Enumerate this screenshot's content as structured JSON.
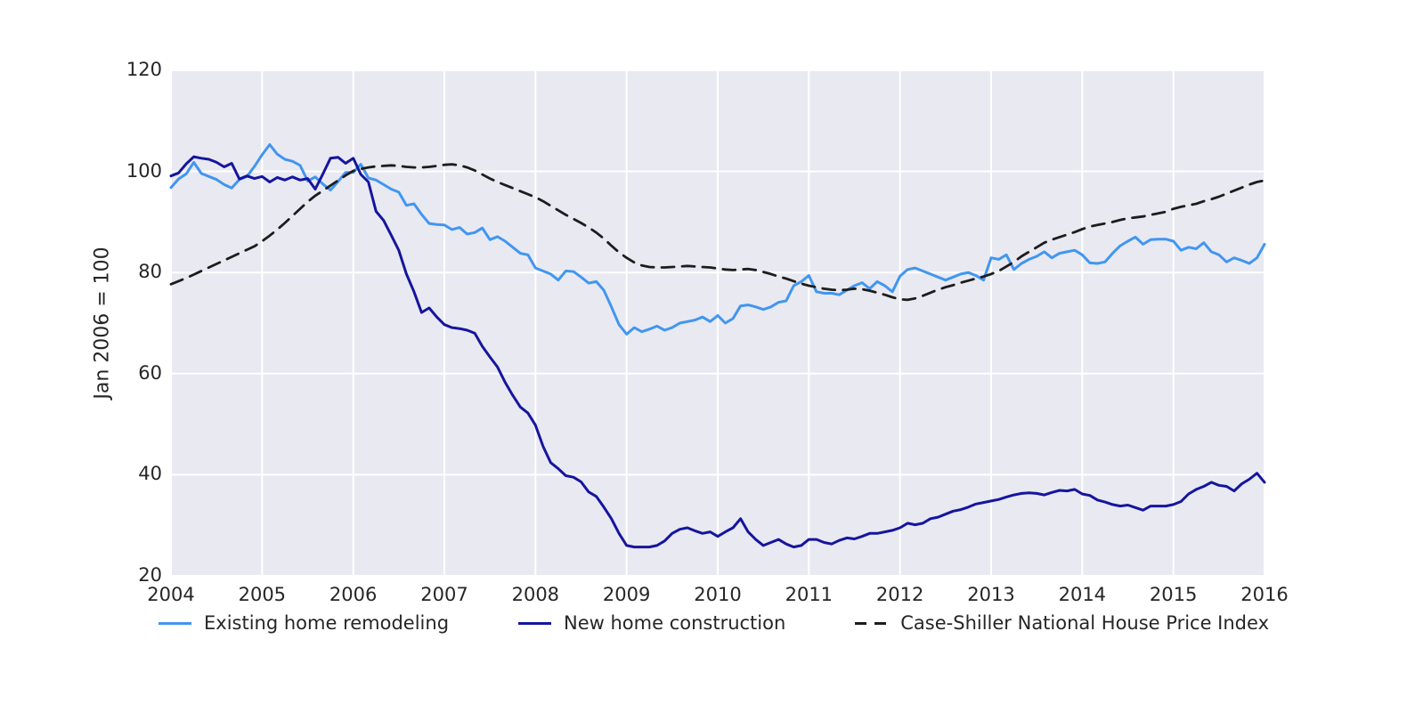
{
  "chart_data": {
    "type": "line",
    "title": "",
    "xlabel": "",
    "ylabel": "Jan 2006 = 100",
    "xlim": [
      2004,
      2016
    ],
    "ylim": [
      20,
      120
    ],
    "x_ticks": [
      2004,
      2005,
      2006,
      2007,
      2008,
      2009,
      2010,
      2011,
      2012,
      2013,
      2014,
      2015,
      2016
    ],
    "y_ticks": [
      20,
      40,
      60,
      80,
      100,
      120
    ],
    "grid": true,
    "legend_position": "bottom",
    "x_start_year": 2004,
    "x_step_months": 1,
    "plot_bg": "#e9e9f2",
    "grid_color": "#ffffff",
    "text_color": "#262626",
    "series": [
      {
        "name": "Existing home remodeling",
        "color": "#4196f0",
        "style": "solid",
        "values": [
          96.8,
          98.5,
          99.5,
          101.8,
          99.6,
          99.0,
          98.4,
          97.4,
          96.7,
          98.4,
          99.0,
          101.0,
          103.3,
          105.3,
          103.4,
          102.4,
          102.0,
          101.2,
          98.1,
          98.9,
          97.5,
          96.3,
          98.0,
          99.8,
          99.8,
          101.4,
          98.7,
          98.3,
          97.4,
          96.5,
          95.9,
          93.3,
          93.6,
          91.5,
          89.7,
          89.5,
          89.4,
          88.5,
          88.9,
          87.6,
          87.9,
          88.8,
          86.5,
          87.1,
          86.2,
          85.0,
          83.8,
          83.5,
          80.9,
          80.3,
          79.7,
          78.5,
          80.3,
          80.2,
          79.1,
          77.9,
          78.2,
          76.5,
          73.2,
          69.7,
          67.8,
          69.1,
          68.3,
          68.8,
          69.4,
          68.6,
          69.1,
          70.0,
          70.3,
          70.6,
          71.2,
          70.3,
          71.5,
          70.0,
          70.9,
          73.4,
          73.6,
          73.2,
          72.7,
          73.2,
          74.1,
          74.4,
          77.4,
          78.2,
          79.4,
          76.2,
          75.9,
          75.9,
          75.6,
          76.5,
          77.4,
          78.0,
          76.8,
          78.2,
          77.4,
          76.2,
          79.3,
          80.6,
          80.9,
          80.3,
          79.7,
          79.1,
          78.5,
          79.1,
          79.7,
          80.0,
          79.4,
          78.5,
          82.9,
          82.6,
          83.5,
          80.6,
          81.8,
          82.6,
          83.2,
          84.1,
          82.9,
          83.8,
          84.1,
          84.4,
          83.5,
          81.9,
          81.8,
          82.1,
          83.8,
          85.3,
          86.2,
          87.0,
          85.6,
          86.5,
          86.6,
          86.6,
          86.2,
          84.4,
          85.0,
          84.7,
          85.9,
          84.1,
          83.5,
          82.1,
          82.9,
          82.4,
          81.8,
          82.9,
          85.6
        ]
      },
      {
        "name": "New home construction",
        "color": "#15159e",
        "style": "solid",
        "values": [
          99.1,
          99.7,
          101.5,
          102.9,
          102.6,
          102.4,
          101.8,
          100.9,
          101.6,
          98.5,
          99.1,
          98.6,
          99.0,
          97.9,
          98.8,
          98.3,
          98.9,
          98.3,
          98.6,
          96.5,
          99.5,
          102.6,
          102.8,
          101.6,
          102.6,
          99.4,
          97.9,
          92.1,
          90.3,
          87.4,
          84.4,
          79.7,
          76.2,
          72.1,
          73.0,
          71.2,
          69.7,
          69.1,
          68.9,
          68.6,
          68.0,
          65.4,
          63.3,
          61.3,
          58.3,
          55.7,
          53.4,
          52.2,
          49.8,
          45.6,
          42.4,
          41.2,
          39.8,
          39.5,
          38.6,
          36.6,
          35.7,
          33.6,
          31.3,
          28.4,
          26.0,
          25.7,
          25.7,
          25.7,
          26.0,
          26.9,
          28.4,
          29.2,
          29.5,
          28.9,
          28.4,
          28.7,
          27.8,
          28.7,
          29.5,
          31.3,
          28.7,
          27.2,
          26.0,
          26.6,
          27.2,
          26.3,
          25.7,
          26.0,
          27.2,
          27.2,
          26.6,
          26.3,
          27.0,
          27.5,
          27.3,
          27.8,
          28.4,
          28.4,
          28.7,
          29.0,
          29.5,
          30.4,
          30.1,
          30.4,
          31.3,
          31.6,
          32.2,
          32.8,
          33.1,
          33.6,
          34.2,
          34.5,
          34.8,
          35.1,
          35.6,
          36.0,
          36.3,
          36.4,
          36.3,
          36.0,
          36.5,
          36.9,
          36.8,
          37.1,
          36.2,
          35.9,
          35.0,
          34.6,
          34.1,
          33.8,
          34.0,
          33.5,
          33.0,
          33.8,
          33.8,
          33.8,
          34.1,
          34.7,
          36.2,
          37.1,
          37.7,
          38.5,
          37.9,
          37.7,
          36.8,
          38.2,
          39.1,
          40.3,
          38.5
        ]
      },
      {
        "name": "Case-Shiller National House Price Index",
        "color": "#1c1c1c",
        "style": "dashed",
        "values": [
          77.7,
          78.3,
          78.9,
          79.6,
          80.3,
          81.0,
          81.7,
          82.4,
          83.1,
          83.8,
          84.5,
          85.2,
          86.2,
          87.3,
          88.5,
          89.8,
          91.2,
          92.6,
          94.0,
          95.2,
          96.2,
          97.2,
          98.2,
          99.2,
          100.1,
          100.5,
          100.8,
          101.0,
          101.1,
          101.2,
          101.1,
          100.9,
          100.8,
          100.8,
          100.9,
          101.1,
          101.3,
          101.4,
          101.2,
          100.8,
          100.2,
          99.4,
          98.6,
          97.9,
          97.3,
          96.7,
          96.1,
          95.5,
          94.9,
          94.1,
          93.2,
          92.3,
          91.4,
          90.6,
          89.8,
          88.9,
          87.9,
          86.7,
          85.3,
          84.0,
          82.9,
          82.0,
          81.4,
          81.1,
          81.0,
          81.0,
          81.1,
          81.2,
          81.3,
          81.2,
          81.1,
          81.0,
          80.8,
          80.6,
          80.5,
          80.6,
          80.7,
          80.5,
          80.1,
          79.7,
          79.2,
          78.8,
          78.3,
          77.8,
          77.4,
          77.1,
          76.8,
          76.6,
          76.5,
          76.6,
          76.8,
          76.7,
          76.4,
          76.0,
          75.6,
          75.1,
          74.7,
          74.6,
          74.9,
          75.4,
          76.0,
          76.6,
          77.1,
          77.5,
          78.0,
          78.4,
          78.8,
          79.2,
          79.7,
          80.3,
          81.2,
          82.1,
          83.2,
          84.1,
          85.0,
          85.9,
          86.5,
          87.0,
          87.5,
          88.0,
          88.6,
          89.1,
          89.4,
          89.7,
          90.0,
          90.4,
          90.7,
          90.9,
          91.1,
          91.4,
          91.7,
          92.0,
          92.6,
          93.0,
          93.3,
          93.6,
          94.1,
          94.5,
          95.0,
          95.6,
          96.2,
          96.8,
          97.4,
          97.9,
          98.2
        ]
      }
    ]
  }
}
